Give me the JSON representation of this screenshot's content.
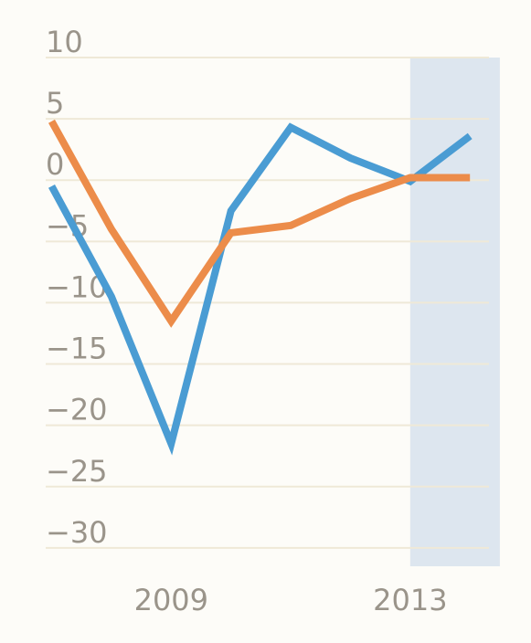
{
  "chart_data": {
    "type": "line",
    "x": [
      2007,
      2008,
      2009,
      2010,
      2011,
      2012,
      2013,
      2014
    ],
    "xticks": [
      {
        "value": 2009,
        "label": "2009"
      },
      {
        "value": 2013,
        "label": "2013"
      }
    ],
    "yticks": [
      {
        "value": 10,
        "label": "10"
      },
      {
        "value": 5,
        "label": "5"
      },
      {
        "value": 0,
        "label": "0"
      },
      {
        "value": -5,
        "label": "−5"
      },
      {
        "value": -10,
        "label": "−10"
      },
      {
        "value": -15,
        "label": "−15"
      },
      {
        "value": -20,
        "label": "−20"
      },
      {
        "value": -25,
        "label": "−25"
      },
      {
        "value": -30,
        "label": "−30"
      }
    ],
    "ylim": [
      -31.5,
      10
    ],
    "xlim": [
      2006.9,
      2014.7
    ],
    "grid": true,
    "shaded_region": {
      "from": 2013,
      "to": 2014.5,
      "color": "#dde6ef"
    },
    "series": [
      {
        "color": "#4a9cd3",
        "values": [
          -0.5,
          -9.5,
          -21.5,
          -2.5,
          4.3,
          1.8,
          -0.1,
          3.6
        ]
      },
      {
        "color": "#ec8c4a",
        "values": [
          4.8,
          -4.0,
          -11.5,
          -4.3,
          -3.7,
          -1.5,
          0.2,
          0.2
        ]
      }
    ]
  }
}
